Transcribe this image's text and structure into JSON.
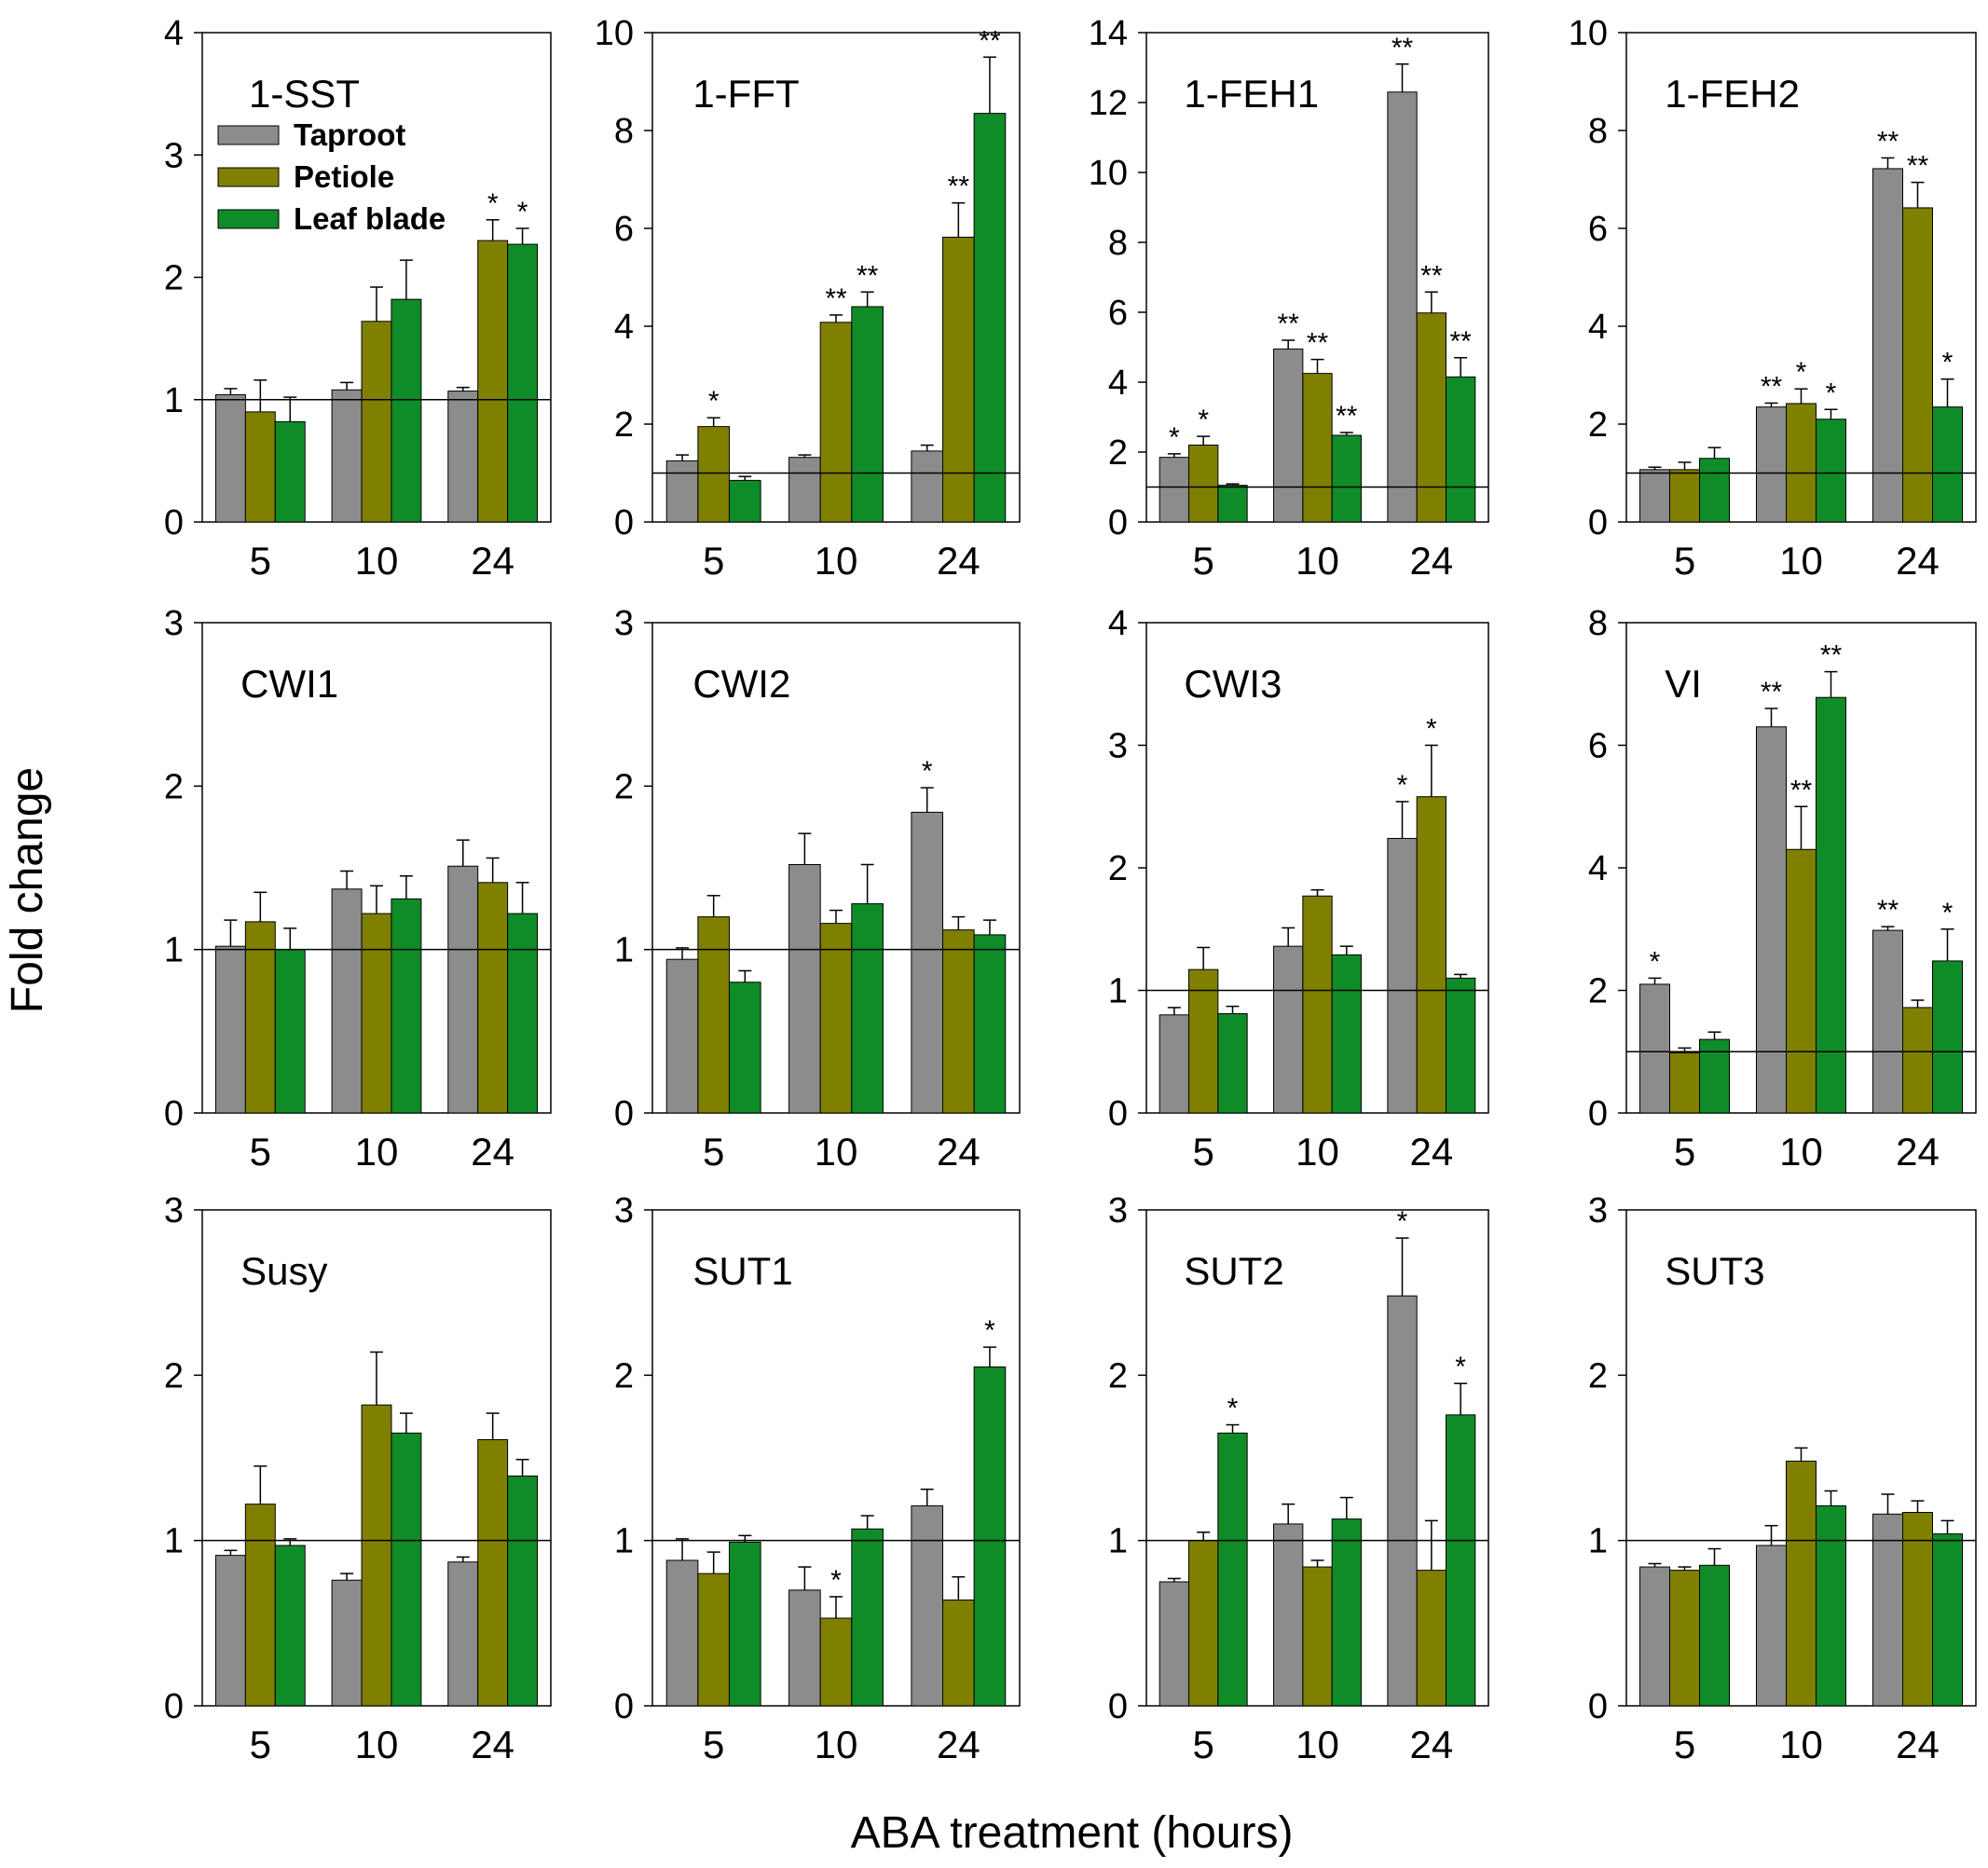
{
  "colors": {
    "taproot": "#8c8c8c",
    "petiole": "#808000",
    "leaf_blade": "#0f8c28"
  },
  "axes": {
    "y_title": "Fold change",
    "x_title": "ABA treatment (hours)"
  },
  "legend": [
    {
      "label": "Taproot",
      "color_key": "taproot"
    },
    {
      "label": "Petiole",
      "color_key": "petiole"
    },
    {
      "label": "Leaf blade",
      "color_key": "leaf_blade"
    }
  ],
  "chart_data": [
    {
      "type": "bar",
      "title": "1-SST",
      "categories": [
        "5",
        "10",
        "24"
      ],
      "ylim": [
        0,
        4
      ],
      "yticks": [
        "0",
        "1",
        "2",
        "3",
        "4"
      ],
      "reference_line": 1,
      "legend": true,
      "series": [
        {
          "name": "Taproot",
          "values": [
            1.04,
            1.08,
            1.07
          ],
          "errors": [
            0.05,
            0.06,
            0.03
          ],
          "sig": [
            "",
            "",
            ""
          ]
        },
        {
          "name": "Petiole",
          "values": [
            0.9,
            1.64,
            2.3
          ],
          "errors": [
            0.26,
            0.28,
            0.17
          ],
          "sig": [
            "",
            "",
            "*"
          ]
        },
        {
          "name": "Leaf blade",
          "values": [
            0.82,
            1.82,
            2.27
          ],
          "errors": [
            0.2,
            0.32,
            0.13
          ],
          "sig": [
            "",
            "",
            "*"
          ]
        }
      ]
    },
    {
      "type": "bar",
      "title": "1-FFT",
      "categories": [
        "5",
        "10",
        "24"
      ],
      "ylim": [
        0,
        10
      ],
      "yticks": [
        "0",
        "2",
        "4",
        "6",
        "8",
        "10"
      ],
      "reference_line": 1,
      "series": [
        {
          "name": "Taproot",
          "values": [
            1.25,
            1.32,
            1.45
          ],
          "errors": [
            0.12,
            0.05,
            0.12
          ],
          "sig": [
            "",
            "",
            ""
          ]
        },
        {
          "name": "Petiole",
          "values": [
            1.95,
            4.08,
            5.82
          ],
          "errors": [
            0.18,
            0.15,
            0.7
          ],
          "sig": [
            "*",
            "**",
            "**"
          ]
        },
        {
          "name": "Leaf blade",
          "values": [
            0.85,
            4.4,
            8.35
          ],
          "errors": [
            0.08,
            0.3,
            1.15
          ],
          "sig": [
            "",
            "**",
            "**"
          ]
        }
      ]
    },
    {
      "type": "bar",
      "title": "1-FEH1",
      "categories": [
        "5",
        "10",
        "24"
      ],
      "ylim": [
        0,
        14
      ],
      "yticks": [
        "0",
        "2",
        "4",
        "6",
        "8",
        "10",
        "12",
        "14"
      ],
      "reference_line": 1,
      "series": [
        {
          "name": "Taproot",
          "values": [
            1.85,
            4.95,
            12.3
          ],
          "errors": [
            0.1,
            0.25,
            0.8
          ],
          "sig": [
            "*",
            "**",
            "**"
          ]
        },
        {
          "name": "Petiole",
          "values": [
            2.2,
            4.25,
            5.98
          ],
          "errors": [
            0.25,
            0.4,
            0.6
          ],
          "sig": [
            "*",
            "**",
            "**"
          ]
        },
        {
          "name": "Leaf blade",
          "values": [
            1.05,
            2.48,
            4.15
          ],
          "errors": [
            0.04,
            0.08,
            0.55
          ],
          "sig": [
            "",
            "**",
            "**"
          ]
        }
      ]
    },
    {
      "type": "bar",
      "title": "1-FEH2",
      "categories": [
        "5",
        "10",
        "24"
      ],
      "ylim": [
        0,
        10
      ],
      "yticks": [
        "0",
        "2",
        "4",
        "6",
        "8",
        "10"
      ],
      "reference_line": 1,
      "series": [
        {
          "name": "Taproot",
          "values": [
            1.07,
            2.35,
            7.22
          ],
          "errors": [
            0.05,
            0.08,
            0.22
          ],
          "sig": [
            "",
            "**",
            "**"
          ]
        },
        {
          "name": "Petiole",
          "values": [
            1.07,
            2.42,
            6.42
          ],
          "errors": [
            0.15,
            0.3,
            0.52
          ],
          "sig": [
            "",
            "*",
            "**"
          ]
        },
        {
          "name": "Leaf blade",
          "values": [
            1.3,
            2.1,
            2.35
          ],
          "errors": [
            0.22,
            0.2,
            0.57
          ],
          "sig": [
            "",
            "*",
            "*"
          ]
        }
      ]
    },
    {
      "type": "bar",
      "title": "CWI1",
      "categories": [
        "5",
        "10",
        "24"
      ],
      "ylim": [
        0,
        3
      ],
      "yticks": [
        "0",
        "1",
        "2",
        "3"
      ],
      "reference_line": 1,
      "series": [
        {
          "name": "Taproot",
          "values": [
            1.02,
            1.37,
            1.51
          ],
          "errors": [
            0.16,
            0.11,
            0.16
          ],
          "sig": [
            "",
            "",
            ""
          ]
        },
        {
          "name": "Petiole",
          "values": [
            1.17,
            1.22,
            1.41
          ],
          "errors": [
            0.18,
            0.17,
            0.15
          ],
          "sig": [
            "",
            "",
            ""
          ]
        },
        {
          "name": "Leaf blade",
          "values": [
            1.0,
            1.31,
            1.22
          ],
          "errors": [
            0.13,
            0.14,
            0.19
          ],
          "sig": [
            "",
            "",
            ""
          ]
        }
      ]
    },
    {
      "type": "bar",
      "title": "CWI2",
      "categories": [
        "5",
        "10",
        "24"
      ],
      "ylim": [
        0,
        3
      ],
      "yticks": [
        "0",
        "1",
        "2",
        "3"
      ],
      "reference_line": 1,
      "series": [
        {
          "name": "Taproot",
          "values": [
            0.94,
            1.52,
            1.84
          ],
          "errors": [
            0.07,
            0.19,
            0.15
          ],
          "sig": [
            "",
            "",
            "*"
          ]
        },
        {
          "name": "Petiole",
          "values": [
            1.2,
            1.16,
            1.12
          ],
          "errors": [
            0.13,
            0.08,
            0.08
          ],
          "sig": [
            "",
            "",
            ""
          ]
        },
        {
          "name": "Leaf blade",
          "values": [
            0.8,
            1.28,
            1.09
          ],
          "errors": [
            0.07,
            0.24,
            0.09
          ],
          "sig": [
            "",
            "",
            ""
          ]
        }
      ]
    },
    {
      "type": "bar",
      "title": "CWI3",
      "categories": [
        "5",
        "10",
        "24"
      ],
      "ylim": [
        0,
        4
      ],
      "yticks": [
        "0",
        "1",
        "2",
        "3",
        "4"
      ],
      "reference_line": 1,
      "series": [
        {
          "name": "Taproot",
          "values": [
            0.8,
            1.36,
            2.24
          ],
          "errors": [
            0.06,
            0.15,
            0.3
          ],
          "sig": [
            "",
            "",
            "*"
          ]
        },
        {
          "name": "Petiole",
          "values": [
            1.17,
            1.77,
            2.58
          ],
          "errors": [
            0.18,
            0.05,
            0.42
          ],
          "sig": [
            "",
            "",
            "*"
          ]
        },
        {
          "name": "Leaf blade",
          "values": [
            0.81,
            1.29,
            1.1
          ],
          "errors": [
            0.06,
            0.07,
            0.03
          ],
          "sig": [
            "",
            "",
            ""
          ]
        }
      ]
    },
    {
      "type": "bar",
      "title": "VI",
      "categories": [
        "5",
        "10",
        "24"
      ],
      "ylim": [
        0,
        8
      ],
      "yticks": [
        "0",
        "2",
        "4",
        "6",
        "8"
      ],
      "reference_line": 1,
      "series": [
        {
          "name": "Taproot",
          "values": [
            2.1,
            6.3,
            2.98
          ],
          "errors": [
            0.1,
            0.3,
            0.06
          ],
          "sig": [
            "*",
            "**",
            "**"
          ]
        },
        {
          "name": "Petiole",
          "values": [
            0.98,
            4.3,
            1.72
          ],
          "errors": [
            0.08,
            0.7,
            0.12
          ],
          "sig": [
            "",
            "**",
            ""
          ]
        },
        {
          "name": "Leaf blade",
          "values": [
            1.2,
            6.78,
            2.48
          ],
          "errors": [
            0.12,
            0.42,
            0.52
          ],
          "sig": [
            "",
            "**",
            "*"
          ]
        }
      ]
    },
    {
      "type": "bar",
      "title": "Susy",
      "categories": [
        "5",
        "10",
        "24"
      ],
      "ylim": [
        0,
        3
      ],
      "yticks": [
        "0",
        "1",
        "2",
        "3"
      ],
      "reference_line": 1,
      "series": [
        {
          "name": "Taproot",
          "values": [
            0.91,
            0.76,
            0.87
          ],
          "errors": [
            0.03,
            0.04,
            0.03
          ],
          "sig": [
            "",
            "",
            ""
          ]
        },
        {
          "name": "Petiole",
          "values": [
            1.22,
            1.82,
            1.61
          ],
          "errors": [
            0.23,
            0.32,
            0.16
          ],
          "sig": [
            "",
            "",
            ""
          ]
        },
        {
          "name": "Leaf blade",
          "values": [
            0.97,
            1.65,
            1.39
          ],
          "errors": [
            0.04,
            0.12,
            0.1
          ],
          "sig": [
            "",
            "",
            ""
          ]
        }
      ]
    },
    {
      "type": "bar",
      "title": "SUT1",
      "categories": [
        "5",
        "10",
        "24"
      ],
      "ylim": [
        0,
        3
      ],
      "yticks": [
        "0",
        "1",
        "2",
        "3"
      ],
      "reference_line": 1,
      "series": [
        {
          "name": "Taproot",
          "values": [
            0.88,
            0.7,
            1.21
          ],
          "errors": [
            0.13,
            0.14,
            0.1
          ],
          "sig": [
            "",
            "",
            ""
          ]
        },
        {
          "name": "Petiole",
          "values": [
            0.8,
            0.53,
            0.64
          ],
          "errors": [
            0.13,
            0.13,
            0.14
          ],
          "sig": [
            "",
            "*",
            ""
          ]
        },
        {
          "name": "Leaf blade",
          "values": [
            0.99,
            1.07,
            2.05
          ],
          "errors": [
            0.04,
            0.08,
            0.12
          ],
          "sig": [
            "",
            "",
            "*"
          ]
        }
      ]
    },
    {
      "type": "bar",
      "title": "SUT2",
      "categories": [
        "5",
        "10",
        "24"
      ],
      "ylim": [
        0,
        3
      ],
      "yticks": [
        "0",
        "1",
        "2",
        "3"
      ],
      "reference_line": 1,
      "series": [
        {
          "name": "Taproot",
          "values": [
            0.75,
            1.1,
            2.48
          ],
          "errors": [
            0.02,
            0.12,
            0.35
          ],
          "sig": [
            "",
            "",
            "*"
          ]
        },
        {
          "name": "Petiole",
          "values": [
            1.0,
            0.84,
            0.82
          ],
          "errors": [
            0.05,
            0.04,
            0.3
          ],
          "sig": [
            "",
            "",
            ""
          ]
        },
        {
          "name": "Leaf blade",
          "values": [
            1.65,
            1.13,
            1.76
          ],
          "errors": [
            0.05,
            0.13,
            0.19
          ],
          "sig": [
            "*",
            "",
            "*"
          ]
        }
      ]
    },
    {
      "type": "bar",
      "title": "SUT3",
      "categories": [
        "5",
        "10",
        "24"
      ],
      "ylim": [
        0,
        3
      ],
      "yticks": [
        "0",
        "1",
        "2",
        "3"
      ],
      "reference_line": 1,
      "series": [
        {
          "name": "Taproot",
          "values": [
            0.84,
            0.97,
            1.16
          ],
          "errors": [
            0.02,
            0.12,
            0.12
          ],
          "sig": [
            "",
            "",
            ""
          ]
        },
        {
          "name": "Petiole",
          "values": [
            0.82,
            1.48,
            1.17
          ],
          "errors": [
            0.02,
            0.08,
            0.07
          ],
          "sig": [
            "",
            "",
            ""
          ]
        },
        {
          "name": "Leaf blade",
          "values": [
            0.85,
            1.21,
            1.04
          ],
          "errors": [
            0.1,
            0.09,
            0.08
          ],
          "sig": [
            "",
            "",
            ""
          ]
        }
      ]
    }
  ]
}
